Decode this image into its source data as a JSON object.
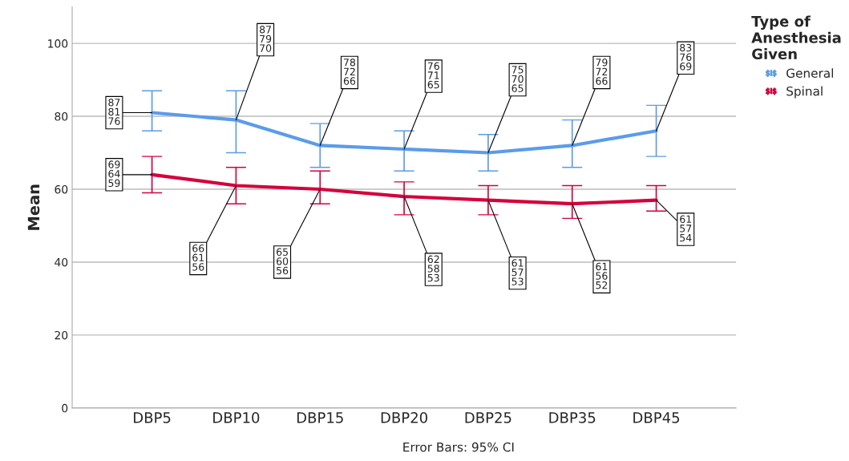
{
  "chart_data": {
    "type": "line",
    "ylabel": "Mean",
    "legend_title": "Type of\nAnesthesia\nGiven",
    "categories": [
      "DBP5",
      "DBP10",
      "DBP15",
      "DBP20",
      "DBP25",
      "DBP35",
      "DBP45"
    ],
    "series": [
      {
        "name": "General",
        "color": "#5b9bea",
        "values": [
          81,
          79,
          72,
          71,
          70,
          72,
          76
        ],
        "errors": [
          [
            76,
            87
          ],
          [
            70,
            87
          ],
          [
            66,
            78
          ],
          [
            65,
            76
          ],
          [
            65,
            75
          ],
          [
            66,
            79
          ],
          [
            69,
            83
          ]
        ],
        "value_labels": [
          "87\n81\n76",
          "87\n79\n70",
          "78\n72\n66",
          "76\n71\n65",
          "75\n70\n65",
          "79\n72\n66",
          "83\n76\n69"
        ]
      },
      {
        "name": "Spinal",
        "color": "#d5003c",
        "values": [
          64,
          61,
          60,
          58,
          57,
          56,
          57
        ],
        "errors": [
          [
            59,
            69
          ],
          [
            56,
            66
          ],
          [
            56,
            65
          ],
          [
            53,
            62
          ],
          [
            53,
            61
          ],
          [
            52,
            61
          ],
          [
            54,
            61
          ]
        ],
        "value_labels": [
          "69\n64\n59",
          "66\n61\n56",
          "65\n60\n56",
          "62\n58\n53",
          "61\n57\n53",
          "61\n56\n52",
          "61\n57\n54"
        ]
      }
    ],
    "ylim": [
      0,
      110
    ],
    "yticks": [
      0,
      20,
      40,
      60,
      80,
      100
    ],
    "grid": "y",
    "legend": "top right",
    "marker": "none",
    "line_style": "solid",
    "annotations": [
      "Error Bars: 95% CI"
    ]
  }
}
